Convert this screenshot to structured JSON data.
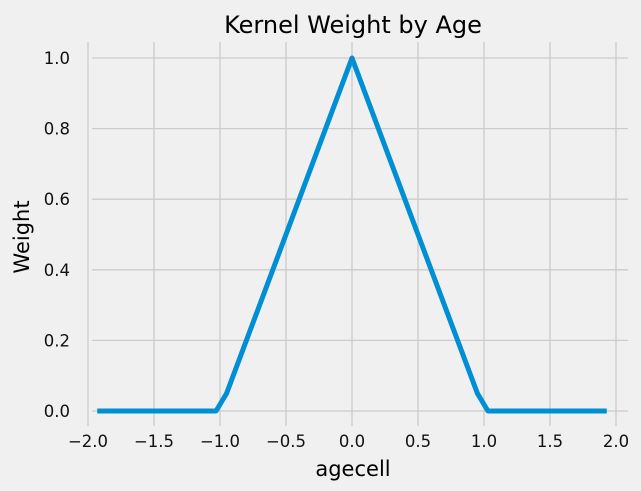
{
  "chart_data": {
    "type": "line",
    "title": "Kernel Weight by Age",
    "xlabel": "agecell",
    "ylabel": "Weight",
    "xlim": [
      -2.0,
      2.0
    ],
    "ylim": [
      0.0,
      1.0
    ],
    "grid": true,
    "x_ticks": [
      "−2.0",
      "−1.5",
      "−1.0",
      "−0.5",
      "0.0",
      "0.5",
      "1.0",
      "1.5",
      "2.0"
    ],
    "y_ticks": [
      "0.0",
      "0.2",
      "0.4",
      "0.6",
      "0.8",
      "1.0"
    ],
    "x_tick_values": [
      -2.0,
      -1.5,
      -1.0,
      -0.5,
      0.0,
      0.5,
      1.0,
      1.5,
      2.0
    ],
    "y_tick_values": [
      0.0,
      0.2,
      0.4,
      0.6,
      0.8,
      1.0
    ],
    "series": [
      {
        "color": "#008fd5",
        "x": [
          -1.93,
          -1.5,
          -1.03,
          -0.95,
          0.0,
          0.95,
          1.03,
          1.5,
          1.93
        ],
        "y": [
          0.0,
          0.0,
          0.0,
          0.05,
          1.0,
          0.05,
          0.0,
          0.0,
          0.0
        ]
      }
    ]
  }
}
